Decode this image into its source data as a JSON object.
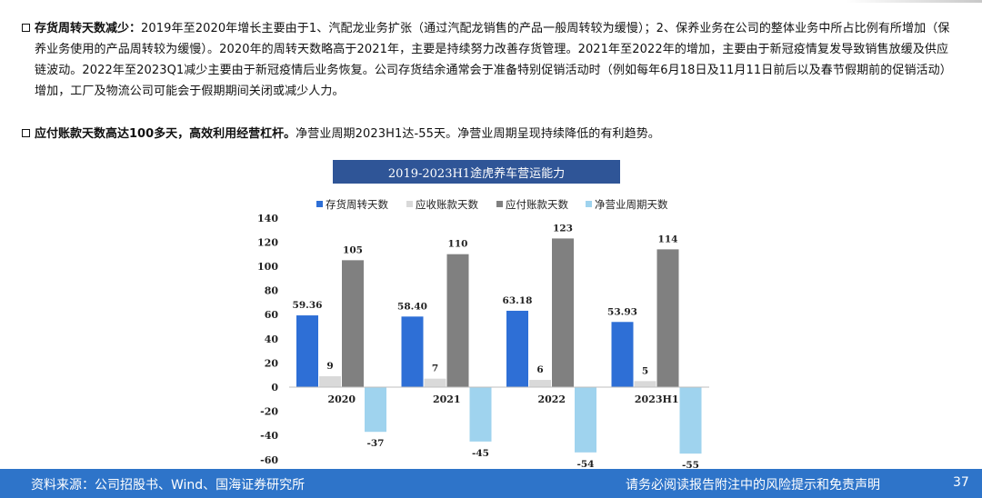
{
  "paragraphs": [
    {
      "lead": "存货周转天数减少：",
      "text": "2019年至2020年增长主要由于1、汽配龙业务扩张（通过汽配龙销售的产品一般周转较为缓慢）；2、保养业务在公司的整体业务中所占比例有所增加（保养业务使用的产品周转较为缓慢）。2020年的周转天数略高于2021年，主要是持续努力改善存货管理。2021年至2022年的增加，主要由于新冠疫情复发导致销售放缓及供应链波动。2022年至2023Q1减少主要由于新冠疫情后业务恢复。公司存货结余通常会于准备特别促销活动时（例如每年6月18日及11月11日前后以及春节假期前的促销活动）增加，工厂及物流公司可能会于假期期间关闭或减少人力。"
    },
    {
      "lead": "应付账款天数高达100多天，高效利用经营杠杆。",
      "text": "净营业周期2023H1达-55天。净营业周期呈现持续降低的有利趋势。"
    }
  ],
  "chart_data": {
    "type": "bar",
    "title": "2019-2023H1途虎养车营运能力",
    "categories": [
      "2020",
      "2021",
      "2022",
      "2023H1"
    ],
    "series": [
      {
        "name": "存货周转天数",
        "values": [
          59.36,
          58.4,
          63.18,
          53.93
        ],
        "labels": [
          "59.36",
          "58.40",
          "63.18",
          "53.93"
        ],
        "color": "#2e6fd6"
      },
      {
        "name": "应收账款天数",
        "values": [
          9,
          7,
          6,
          5
        ],
        "labels": [
          "9",
          "7",
          "6",
          "5"
        ],
        "color": "#d9d9d9"
      },
      {
        "name": "应付账款天数",
        "values": [
          105,
          110,
          123,
          114
        ],
        "labels": [
          "105",
          "110",
          "123",
          "114"
        ],
        "color": "#808080"
      },
      {
        "name": "净营业周期天数",
        "values": [
          -37,
          -45,
          -54,
          -55
        ],
        "labels": [
          "-37",
          "-45",
          "-54",
          "-55"
        ],
        "color": "#9fd3ee"
      }
    ],
    "ylim": [
      -60,
      140
    ],
    "yticks": [
      "140",
      "120",
      "100",
      "80",
      "60",
      "40",
      "20",
      "0",
      "-20",
      "-40",
      "-60"
    ],
    "legend_position": "top"
  },
  "footer": {
    "source": "资料来源：公司招股书、Wind、国海证券研究所",
    "disclaimer": "请务必阅读报告附注中的风险提示和免责声明",
    "page": "37"
  }
}
